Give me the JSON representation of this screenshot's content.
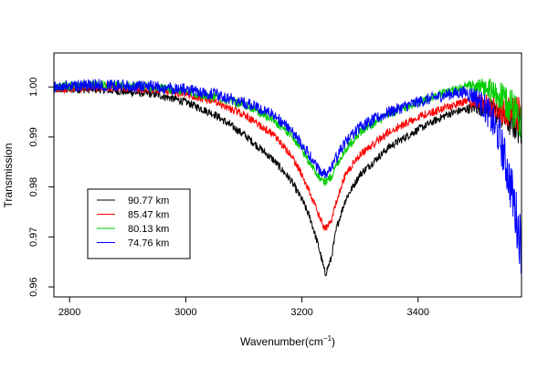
{
  "chart_data": {
    "type": "line",
    "title": "",
    "xlabel_main": "Wavenumber(cm",
    "xlabel_sup": "−1",
    "xlabel_close": ")",
    "ylabel": "Transmission",
    "xlim": [
      2773,
      3578
    ],
    "ylim": [
      0.958,
      1.0068
    ],
    "x_ticks": [
      2800,
      3000,
      3200,
      3400
    ],
    "x_tick_labels": [
      "2800",
      "3000",
      "3200",
      "3400"
    ],
    "y_ticks": [
      0.96,
      0.97,
      0.98,
      0.99,
      1.0
    ],
    "y_tick_labels": [
      "0.96",
      "0.97",
      "0.98",
      "0.99",
      "1.00"
    ],
    "legend_position": "lower-left",
    "series": [
      {
        "name": "90.77 km",
        "color": "#000000",
        "noise": 0.0008,
        "x": [
          2773,
          2850,
          2950,
          3000,
          3050,
          3100,
          3150,
          3180,
          3200,
          3215,
          3230,
          3240,
          3250,
          3260,
          3275,
          3300,
          3350,
          3400,
          3450,
          3480,
          3500,
          3520,
          3540,
          3560,
          3578
        ],
        "values": [
          0.9995,
          0.9995,
          0.9985,
          0.997,
          0.9945,
          0.9905,
          0.9855,
          0.9815,
          0.9775,
          0.9735,
          0.9675,
          0.9625,
          0.9655,
          0.972,
          0.9775,
          0.9825,
          0.988,
          0.9915,
          0.9945,
          0.9955,
          0.996,
          0.9955,
          0.9945,
          0.993,
          0.992
        ]
      },
      {
        "name": "85.47 km",
        "color": "#ff0000",
        "noise": 0.0008,
        "x": [
          2773,
          2850,
          2950,
          3000,
          3050,
          3100,
          3150,
          3180,
          3200,
          3215,
          3230,
          3240,
          3250,
          3260,
          3275,
          3300,
          3350,
          3400,
          3450,
          3480,
          3500,
          3520,
          3540,
          3560,
          3578
        ],
        "values": [
          0.9995,
          1.0,
          0.9995,
          0.9985,
          0.997,
          0.9945,
          0.9905,
          0.9865,
          0.9825,
          0.9785,
          0.974,
          0.9715,
          0.973,
          0.9775,
          0.9825,
          0.9865,
          0.991,
          0.994,
          0.996,
          0.997,
          0.997,
          0.9965,
          0.9955,
          0.995,
          0.994
        ]
      },
      {
        "name": "80.13 km",
        "color": "#00cc00",
        "noise": 0.0009,
        "x": [
          2773,
          2850,
          2950,
          3000,
          3050,
          3100,
          3150,
          3180,
          3200,
          3215,
          3230,
          3240,
          3250,
          3260,
          3275,
          3300,
          3350,
          3400,
          3450,
          3480,
          3500,
          3520,
          3540,
          3560,
          3578
        ],
        "values": [
          1.0,
          1.0005,
          1.0,
          0.999,
          0.998,
          0.9965,
          0.9935,
          0.9905,
          0.9875,
          0.9845,
          0.982,
          0.981,
          0.982,
          0.9845,
          0.9875,
          0.991,
          0.9945,
          0.997,
          0.999,
          1.0,
          1.0,
          0.9995,
          0.998,
          0.996,
          0.994
        ]
      },
      {
        "name": "74.76 km",
        "color": "#0000ff",
        "noise": 0.0012,
        "x": [
          2773,
          2850,
          2950,
          3000,
          3050,
          3100,
          3150,
          3180,
          3200,
          3215,
          3230,
          3240,
          3250,
          3260,
          3275,
          3300,
          3350,
          3400,
          3450,
          3480,
          3500,
          3520,
          3540,
          3560,
          3578
        ],
        "values": [
          1.0,
          1.0005,
          1.0,
          0.9995,
          0.9985,
          0.997,
          0.9945,
          0.9915,
          0.9885,
          0.986,
          0.9835,
          0.9825,
          0.9835,
          0.986,
          0.989,
          0.992,
          0.995,
          0.997,
          0.9985,
          0.999,
          0.998,
          0.995,
          0.99,
          0.98,
          0.968
        ]
      }
    ]
  }
}
